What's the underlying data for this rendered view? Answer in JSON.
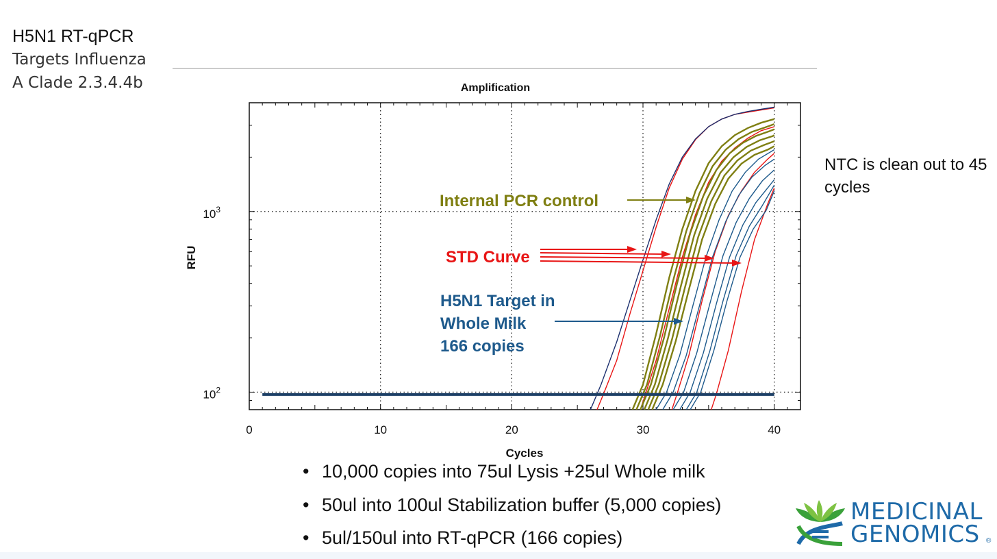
{
  "slide": {
    "title_line1": "H5N1 RT-qPCR",
    "title_line2": "Targets Influenza",
    "title_line3": "A Clade 2.3.4.4b",
    "side_note": "NTC is clean out to 45 cycles",
    "bullets": [
      "10,000 copies into 75ul Lysis +25ul Whole milk",
      "50ul into 100ul Stabilization buffer (5,000 copies)",
      "5ul/150ul into RT-qPCR (166 copies)"
    ],
    "bullet_glyph": "•"
  },
  "logo": {
    "word1": "MEDICINAL",
    "word2": "GENOMICS",
    "mark": "®",
    "icon": "leaf-helix-logo-icon",
    "colors": {
      "blue": "#1e6aa8",
      "green": "#3aa13a",
      "lime": "#7dc242"
    }
  },
  "chart_data": {
    "type": "line",
    "title": "Amplification",
    "xlabel": "Cycles",
    "ylabel": "RFU",
    "xlim": [
      0,
      42
    ],
    "ylim": [
      80,
      4000
    ],
    "yscale": "log",
    "xticks": [
      0,
      10,
      20,
      30,
      40
    ],
    "yticks": [
      {
        "value": 100,
        "base": "10",
        "exp": "2"
      },
      {
        "value": 1000,
        "base": "10",
        "exp": "3"
      }
    ],
    "grid": true,
    "baseline_rfu": 97,
    "baseline_x": [
      1,
      40
    ],
    "colors": {
      "ipc": "#7f7f12",
      "std": "#e81515",
      "target": "#1e5a8c",
      "navy": "#1c2f6e"
    },
    "series": [
      {
        "group": "std",
        "x": [
          26.5,
          27,
          28,
          29,
          30,
          31,
          32,
          33,
          34,
          35,
          36,
          37,
          38,
          39,
          40
        ],
        "y": [
          80,
          98,
          150,
          270,
          470,
          820,
          1350,
          1950,
          2500,
          2950,
          3250,
          3450,
          3550,
          3650,
          3750
        ]
      },
      {
        "group": "std",
        "x": [
          29.8,
          30.2,
          31,
          32,
          33,
          34,
          35,
          36,
          37,
          38,
          39,
          40
        ],
        "y": [
          80,
          98,
          150,
          290,
          560,
          960,
          1450,
          1900,
          2250,
          2550,
          2800,
          2950
        ]
      },
      {
        "group": "std",
        "x": [
          32.2,
          32.6,
          33.5,
          34.5,
          35.5,
          36.5,
          37.5,
          38.5,
          39.5,
          40
        ],
        "y": [
          80,
          98,
          160,
          320,
          600,
          950,
          1300,
          1650,
          1950,
          2100
        ]
      },
      {
        "group": "std",
        "x": [
          35.2,
          35.6,
          36.5,
          37.5,
          38.5,
          39.5,
          40
        ],
        "y": [
          80,
          98,
          170,
          360,
          700,
          1100,
          1350
        ]
      },
      {
        "group": "navy",
        "x": [
          26,
          26.8,
          28,
          29,
          30,
          31,
          32,
          33,
          34,
          35,
          36,
          37,
          38,
          39,
          40
        ],
        "y": [
          80,
          110,
          190,
          320,
          540,
          900,
          1420,
          2000,
          2520,
          2950,
          3250,
          3450,
          3580,
          3680,
          3780
        ]
      },
      {
        "group": "ipc",
        "x": [
          29.2,
          30,
          31,
          32,
          33,
          34,
          35,
          36,
          37,
          38,
          39,
          40
        ],
        "y": [
          80,
          110,
          210,
          430,
          800,
          1300,
          1850,
          2300,
          2650,
          2900,
          3100,
          3250
        ]
      },
      {
        "group": "ipc",
        "x": [
          29.5,
          30.3,
          31.3,
          32.3,
          33.3,
          34.3,
          35.3,
          36.3,
          37.3,
          38.3,
          39.3,
          40
        ],
        "y": [
          80,
          110,
          205,
          415,
          780,
          1260,
          1780,
          2200,
          2520,
          2760,
          2920,
          3050
        ]
      },
      {
        "group": "ipc",
        "x": [
          29.8,
          30.6,
          31.6,
          32.6,
          33.6,
          34.6,
          35.6,
          36.6,
          37.6,
          38.6,
          39.6,
          40
        ],
        "y": [
          80,
          110,
          200,
          400,
          760,
          1220,
          1700,
          2100,
          2400,
          2620,
          2780,
          2850
        ]
      },
      {
        "group": "ipc",
        "x": [
          30.1,
          30.9,
          31.9,
          32.9,
          33.9,
          34.9,
          35.9,
          36.9,
          37.9,
          38.9,
          39.9,
          40
        ],
        "y": [
          80,
          110,
          198,
          390,
          740,
          1180,
          1640,
          2000,
          2280,
          2480,
          2620,
          2650
        ]
      },
      {
        "group": "ipc",
        "x": [
          30.4,
          31.2,
          32.2,
          33.2,
          34.2,
          35.2,
          36.2,
          37.2,
          38.2,
          39.2,
          40
        ],
        "y": [
          80,
          110,
          195,
          380,
          720,
          1140,
          1580,
          1920,
          2170,
          2330,
          2450
        ]
      },
      {
        "group": "ipc",
        "x": [
          30.7,
          31.5,
          32.5,
          33.5,
          34.5,
          35.5,
          36.5,
          37.5,
          38.5,
          39.5,
          40
        ],
        "y": [
          80,
          110,
          192,
          370,
          700,
          1100,
          1520,
          1840,
          2060,
          2200,
          2300
        ]
      },
      {
        "group": "target",
        "x": [
          31,
          31.8,
          32.8,
          33.8,
          34.8,
          35.8,
          36.8,
          37.8,
          38.8,
          40
        ],
        "y": [
          80,
          100,
          160,
          300,
          560,
          900,
          1300,
          1650,
          1950,
          2200
        ]
      },
      {
        "group": "target",
        "x": [
          31.5,
          32.3,
          33.3,
          34.3,
          35.3,
          36.3,
          37.3,
          38.3,
          39.3,
          40
        ],
        "y": [
          80,
          100,
          160,
          300,
          560,
          880,
          1230,
          1550,
          1800,
          1950
        ]
      },
      {
        "group": "target",
        "x": [
          32.3,
          33.1,
          34.1,
          35.1,
          36.1,
          37.1,
          38.1,
          39.1,
          40
        ],
        "y": [
          80,
          100,
          165,
          310,
          570,
          870,
          1180,
          1480,
          1700
        ]
      },
      {
        "group": "target",
        "x": [
          32.8,
          33.6,
          34.6,
          35.6,
          36.6,
          37.6,
          38.6,
          39.6,
          40
        ],
        "y": [
          80,
          100,
          165,
          310,
          560,
          840,
          1120,
          1380,
          1500
        ]
      },
      {
        "group": "target",
        "x": [
          33.3,
          34.1,
          35.1,
          36.1,
          37.1,
          38.1,
          39.1,
          40
        ],
        "y": [
          80,
          100,
          170,
          320,
          570,
          830,
          1080,
          1400
        ]
      },
      {
        "group": "target",
        "x": [
          33.6,
          34.4,
          35.4,
          36.4,
          37.4,
          38.4,
          39.4,
          40
        ],
        "y": [
          80,
          100,
          170,
          320,
          560,
          800,
          1020,
          1300
        ]
      }
    ],
    "annotations": [
      {
        "id": "ipc",
        "lines": [
          "Internal PCR control"
        ],
        "color": "#7f7f12"
      },
      {
        "id": "std",
        "lines": [
          "STD Curve"
        ],
        "color": "#e81515"
      },
      {
        "id": "target",
        "lines": [
          "H5N1 Target in",
          "Whole Milk",
          "166 copies"
        ],
        "color": "#1e5a8c"
      }
    ]
  }
}
